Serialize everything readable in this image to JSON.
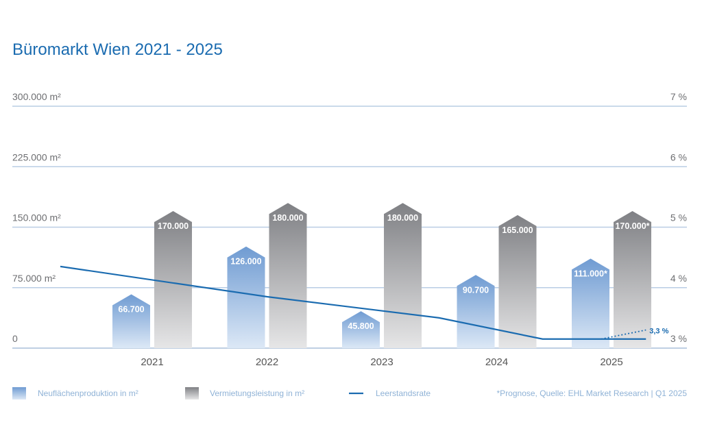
{
  "chart_data": {
    "type": "bar",
    "title": "Büromarkt Wien 2021 - 2025",
    "categories": [
      "2021",
      "2022",
      "2023",
      "2024",
      "2025"
    ],
    "series": [
      {
        "name": "Neuflächenproduktion in m²",
        "values": [
          66700,
          126000,
          45800,
          90700,
          111000
        ],
        "labels": [
          "66.700",
          "126.000",
          "45.800",
          "90.700",
          "111.000*"
        ],
        "color": "#7fa6d6"
      },
      {
        "name": "Vermietungsleistung in m²",
        "values": [
          170000,
          180000,
          180000,
          165000,
          170000
        ],
        "labels": [
          "170.000",
          "180.000",
          "180.000",
          "165.000",
          "170.000*"
        ],
        "color": "#8e8f92"
      },
      {
        "name": "Leerstandsrate",
        "type": "line",
        "axis": "right",
        "x": [
          2020.2,
          2022.0,
          2023.5,
          2024.4,
          2025.3
        ],
        "values": [
          4.35,
          3.85,
          3.5,
          3.15,
          3.15
        ],
        "forecast_end": 3.3,
        "end_label": "3,3 %",
        "color": "#1a6bb0"
      }
    ],
    "y_left": {
      "ylim": [
        0,
        300000
      ],
      "ticks": [
        0,
        75000,
        150000,
        225000,
        300000
      ],
      "tick_labels": [
        "0",
        "75.000 m²",
        "150.000 m²",
        "225.000 m²",
        "300.000 m²"
      ]
    },
    "y_right": {
      "ylim": [
        3,
        7
      ],
      "ticks": [
        3,
        4,
        5,
        6,
        7
      ],
      "tick_labels": [
        "3 %",
        "4 %",
        "5 %",
        "6 %",
        "7 %"
      ]
    },
    "grid": true,
    "legend_position": "bottom",
    "source": "*Prognose, Quelle: EHL Market Research | Q1 2025"
  }
}
